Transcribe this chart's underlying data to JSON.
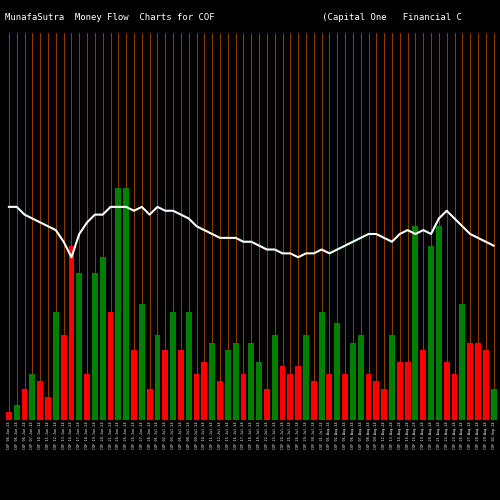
{
  "title": "MunafaSutra  Money Flow  Charts for COF                    (Capital One   Financial C",
  "background_color": "#000000",
  "bar_colors": [
    "red",
    "green",
    "red",
    "green",
    "red",
    "red",
    "green",
    "red",
    "red",
    "green",
    "red",
    "green",
    "green",
    "red",
    "green",
    "green",
    "red",
    "green",
    "red",
    "green",
    "red",
    "green",
    "red",
    "green",
    "red",
    "red",
    "green",
    "red",
    "green",
    "green",
    "red",
    "green",
    "green",
    "red",
    "green",
    "red",
    "red",
    "red",
    "green",
    "red",
    "green",
    "red",
    "green",
    "red",
    "green",
    "green",
    "red",
    "red",
    "red",
    "green",
    "red",
    "red",
    "green",
    "red",
    "green",
    "green",
    "red",
    "red",
    "green",
    "red",
    "red",
    "red",
    "green"
  ],
  "bar_values": [
    2,
    4,
    8,
    12,
    10,
    6,
    28,
    22,
    45,
    38,
    12,
    38,
    42,
    28,
    60,
    60,
    18,
    30,
    8,
    22,
    18,
    28,
    18,
    28,
    12,
    15,
    20,
    10,
    18,
    20,
    12,
    20,
    15,
    8,
    22,
    14,
    12,
    14,
    22,
    10,
    28,
    12,
    25,
    12,
    20,
    22,
    12,
    10,
    8,
    22,
    15,
    15,
    50,
    18,
    45,
    50,
    15,
    12,
    30,
    20,
    20,
    18,
    8
  ],
  "line_values": [
    55,
    55,
    53,
    52,
    51,
    50,
    49,
    46,
    42,
    48,
    51,
    53,
    53,
    55,
    55,
    55,
    54,
    55,
    53,
    55,
    54,
    54,
    53,
    52,
    50,
    49,
    48,
    47,
    47,
    47,
    46,
    46,
    45,
    44,
    44,
    43,
    43,
    42,
    43,
    43,
    44,
    43,
    44,
    45,
    46,
    47,
    48,
    48,
    47,
    46,
    48,
    49,
    48,
    49,
    48,
    52,
    54,
    52,
    50,
    48,
    47,
    46,
    45
  ],
  "line_color": "#ffffff",
  "orange_lines_color": "#cc5500",
  "text_color": "#ffffff",
  "title_fontsize": 6.5,
  "n_bars": 63,
  "ylim_max": 100,
  "line_scale": 1.0,
  "date_labels": [
    "COF 04-Jun-24",
    "COF 05-Jun-24",
    "COF 06-Jun-24",
    "COF 07-Jun-24",
    "COF 10-Jun-24",
    "COF 11-Jun-24",
    "COF 12-Jun-24",
    "COF 13-Jun-24",
    "COF 14-Jun-24",
    "COF 17-Jun-24",
    "COF 18-Jun-24",
    "COF 19-Jun-24",
    "COF 20-Jun-24",
    "COF 21-Jun-24",
    "COF 24-Jun-24",
    "COF 25-Jun-24",
    "COF 26-Jun-24",
    "COF 27-Jun-24",
    "COF 28-Jun-24",
    "COF 01-Jul-24",
    "COF 02-Jul-24",
    "COF 03-Jul-24",
    "COF 05-Jul-24",
    "COF 08-Jul-24",
    "COF 09-Jul-24",
    "COF 10-Jul-24",
    "COF 11-Jul-24",
    "COF 12-Jul-24",
    "COF 15-Jul-24",
    "COF 16-Jul-24",
    "COF 17-Jul-24",
    "COF 18-Jul-24",
    "COF 19-Jul-24",
    "COF 22-Jul-24",
    "COF 23-Jul-24",
    "COF 24-Jul-24",
    "COF 25-Jul-24",
    "COF 26-Jul-24",
    "COF 29-Jul-24",
    "COF 30-Jul-24",
    "COF 31-Jul-24",
    "COF 01-Aug-24",
    "COF 02-Aug-24",
    "COF 05-Aug-24",
    "COF 06-Aug-24",
    "COF 07-Aug-24",
    "COF 08-Aug-24",
    "COF 09-Aug-24",
    "COF 12-Aug-24",
    "COF 13-Aug-24",
    "COF 14-Aug-24",
    "COF 15-Aug-24",
    "COF 16-Aug-24",
    "COF 19-Aug-24",
    "COF 20-Aug-24",
    "COF 21-Aug-24",
    "COF 22-Aug-24",
    "COF 23-Aug-24",
    "COF 26-Aug-24",
    "COF 27-Aug-24",
    "COF 28-Aug-24",
    "COF 29-Aug-24",
    "COF 02-Sep-24"
  ]
}
